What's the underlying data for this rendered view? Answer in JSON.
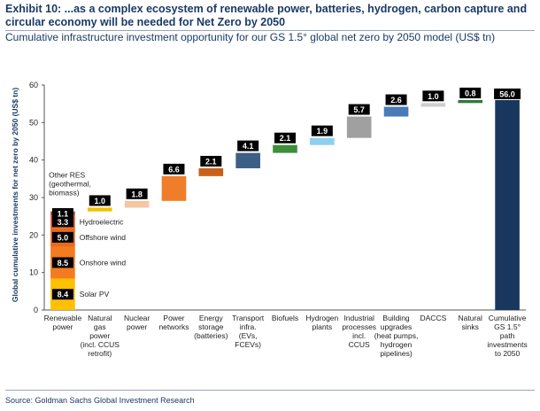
{
  "header": {
    "title": "Exhibit 10: ...as a complex ecosystem of renewable power, batteries, hydrogen, carbon capture and circular economy will be needed for Net Zero by 2050",
    "subtitle": "Cumulative infrastructure investment opportunity for our GS 1.5° global net zero by 2050 model (US$ tn)"
  },
  "footer": {
    "source": "Source: Goldman Sachs Global Investment Research"
  },
  "chart_data": {
    "type": "bar",
    "subtype": "waterfall",
    "ylabel": "Global cumulative investments for net zero by 2050 (US$ tn)",
    "xlabel": "",
    "ylim": [
      0,
      60
    ],
    "yticks": [
      0,
      10,
      20,
      30,
      40,
      50,
      60
    ],
    "grid": false,
    "categories": [
      [
        "Renewable",
        "power"
      ],
      [
        "Natural",
        "gas",
        "power",
        "(incl. CCUS",
        "retrofit)"
      ],
      [
        "Nuclear",
        "power"
      ],
      [
        "Power",
        "networks"
      ],
      [
        "Energy",
        "storage",
        "(batteries)"
      ],
      [
        "Transport",
        "infra.",
        "(EVs,",
        "FCEVs)"
      ],
      [
        "Biofuels"
      ],
      [
        "Hydrogen",
        "plants"
      ],
      [
        "Industrial",
        "processes",
        "incl.",
        "CCUS"
      ],
      [
        "Building",
        "upgrades",
        "(heat pumps,",
        "hydrogen",
        "pipelines)"
      ],
      [
        "DACCS"
      ],
      [
        "Natural",
        "sinks"
      ],
      [
        "Cumulative",
        "GS 1.5°",
        "path",
        "investments",
        "to 2050"
      ]
    ],
    "values": [
      26.3,
      1.0,
      1.8,
      6.6,
      2.1,
      4.1,
      2.1,
      1.9,
      5.7,
      2.6,
      1.0,
      0.8,
      56.0
    ],
    "labels": [
      "",
      "1.0",
      "1.8",
      "6.6",
      "2.1",
      "4.1",
      "2.1",
      "1.9",
      "5.7",
      "2.6",
      "1.0",
      "0.8",
      "56.0"
    ],
    "colors": [
      "",
      "#f2c200",
      "#f5c6a3",
      "#f07d2a",
      "#c9601a",
      "#3d5f85",
      "#3e8f3c",
      "#8fd0ef",
      "#a0a0a0",
      "#4a7ab8",
      "#cfcfcf",
      "#2f7a3b",
      "#19375e"
    ],
    "renewable_breakdown": [
      {
        "name": "Solar PV",
        "value": 8.4,
        "label": "8.4",
        "color": "#ffc000"
      },
      {
        "name": "Onshore wind",
        "value": 8.5,
        "label": "8.5",
        "color": "#f47b20"
      },
      {
        "name": "Offshore wind",
        "value": 5.0,
        "label": "5.0",
        "color": "#e96a1a"
      },
      {
        "name": "Hydroelectric",
        "value": 3.3,
        "label": "3.3",
        "color": "#d8562a"
      },
      {
        "name": "Other RES (geothermal, biomass)",
        "value": 1.1,
        "label": "1.1",
        "color": "#c0392b"
      }
    ],
    "annotations": {
      "other_res": [
        "Other RES",
        "(geothermal,",
        "biomass)"
      ]
    }
  }
}
